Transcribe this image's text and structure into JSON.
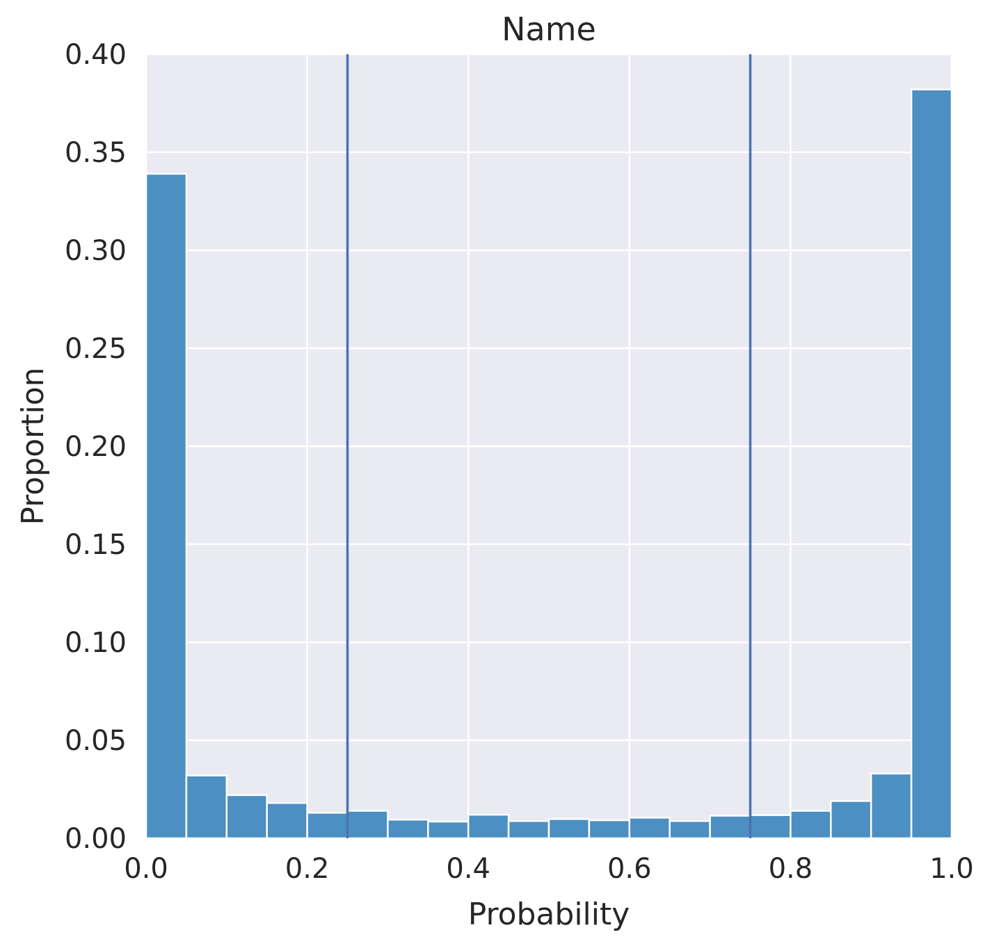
{
  "chart_data": {
    "type": "bar",
    "title": "Name",
    "xlabel": "Probability",
    "ylabel": "Proportion",
    "xlim": [
      0.0,
      1.0
    ],
    "ylim": [
      0.0,
      0.4
    ],
    "x_ticks": [
      "0.0",
      "0.2",
      "0.4",
      "0.6",
      "0.8",
      "1.0"
    ],
    "y_ticks": [
      "0.00",
      "0.05",
      "0.10",
      "0.15",
      "0.20",
      "0.25",
      "0.30",
      "0.35",
      "0.40"
    ],
    "bin_edges": [
      0.0,
      0.05,
      0.1,
      0.15,
      0.2,
      0.25,
      0.3,
      0.35,
      0.4,
      0.45,
      0.5,
      0.55,
      0.6,
      0.65,
      0.7,
      0.75,
      0.8,
      0.85,
      0.9,
      0.95,
      1.0
    ],
    "values": [
      0.339,
      0.032,
      0.022,
      0.018,
      0.013,
      0.014,
      0.0095,
      0.0085,
      0.012,
      0.0088,
      0.0098,
      0.0092,
      0.0105,
      0.0088,
      0.0115,
      0.0118,
      0.014,
      0.019,
      0.033,
      0.382
    ],
    "vlines": [
      0.25,
      0.75
    ],
    "grid": true,
    "colors": {
      "bar_fill": "#4c8fc2",
      "bar_edge": "#ffffff",
      "vline": "#4c72b0",
      "plot_background": "#eaeaf2",
      "grid": "#ffffff"
    }
  }
}
